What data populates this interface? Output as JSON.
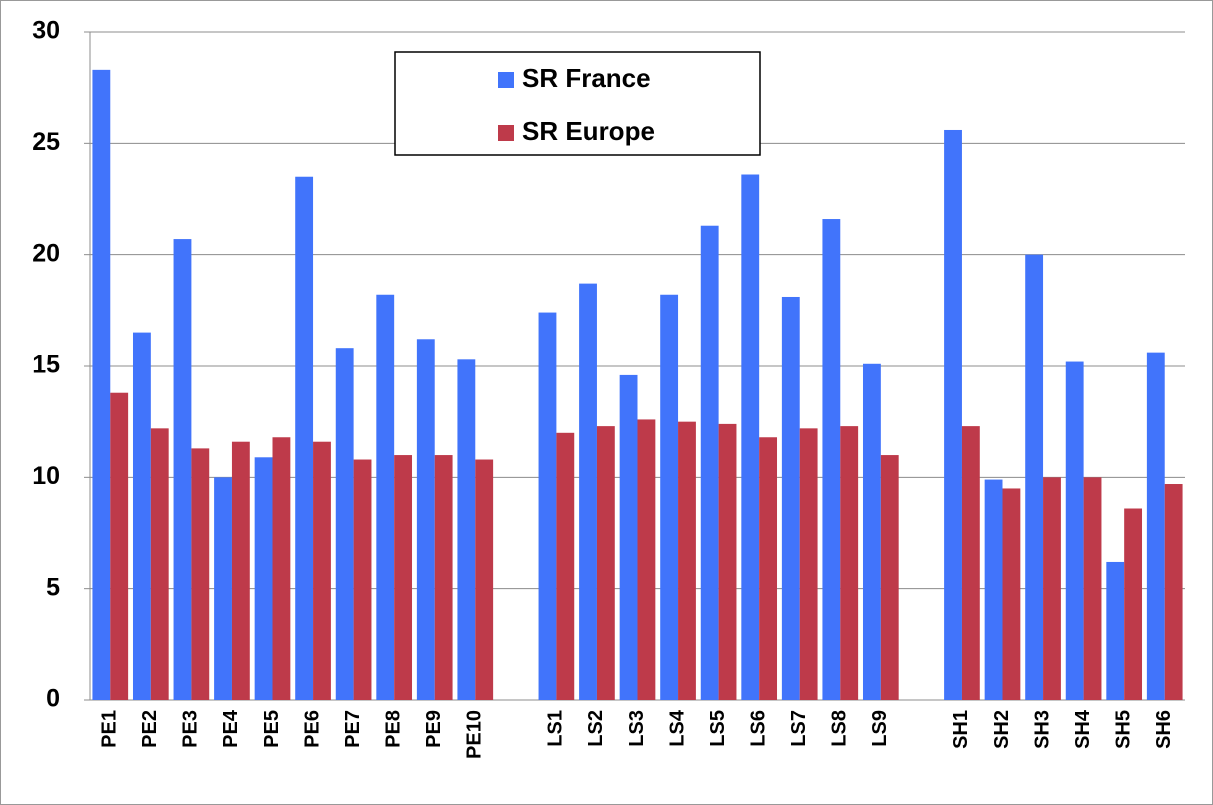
{
  "chart_data": {
    "type": "bar",
    "categories": [
      "PE1",
      "PE2",
      "PE3",
      "PE4",
      "PE5",
      "PE6",
      "PE7",
      "PE8",
      "PE9",
      "PE10",
      null,
      "LS1",
      "LS2",
      "LS3",
      "LS4",
      "LS5",
      "LS6",
      "LS7",
      "LS8",
      "LS9",
      null,
      "SH1",
      "SH2",
      "SH3",
      "SH4",
      "SH5",
      "SH6"
    ],
    "series": [
      {
        "name": "SR France",
        "color": "#4174fb",
        "values": [
          28.3,
          16.5,
          20.7,
          10.0,
          10.9,
          23.5,
          15.8,
          18.2,
          16.2,
          15.3,
          null,
          17.4,
          18.7,
          14.6,
          18.2,
          21.3,
          23.6,
          18.1,
          21.6,
          15.1,
          null,
          25.6,
          9.9,
          20.0,
          15.2,
          6.2,
          15.6
        ]
      },
      {
        "name": "SR Europe",
        "color": "#be3a4a",
        "values": [
          13.8,
          12.2,
          11.3,
          11.6,
          11.8,
          11.6,
          10.8,
          11.0,
          11.0,
          10.8,
          null,
          12.0,
          12.3,
          12.6,
          12.5,
          12.4,
          11.8,
          12.2,
          12.3,
          11.0,
          null,
          12.3,
          9.5,
          10.0,
          10.0,
          8.6,
          9.7
        ]
      }
    ],
    "ylim": [
      0,
      30
    ],
    "yticks": [
      0,
      5,
      10,
      15,
      20,
      25,
      30
    ],
    "grid": true,
    "legend": "top"
  }
}
